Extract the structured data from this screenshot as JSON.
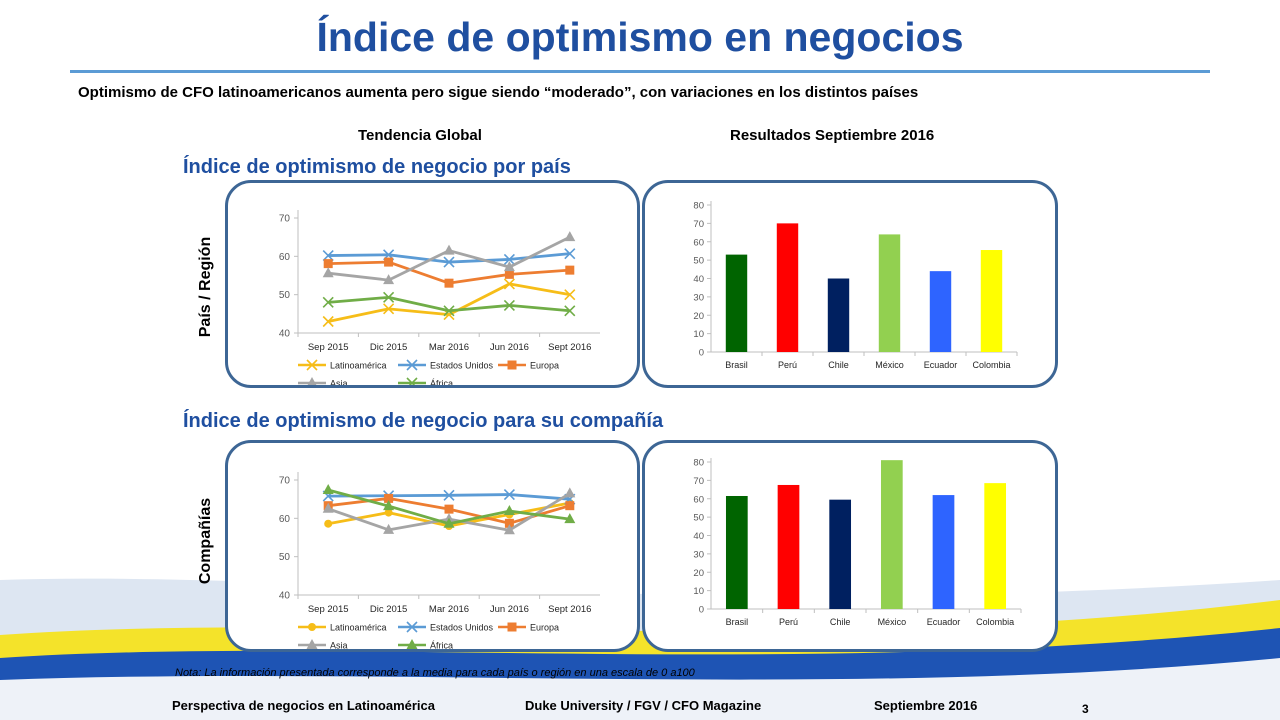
{
  "header": {
    "title": "Índice de optimismo en negocios",
    "subtitle": "Optimismo de CFO latinoamericanos aumenta pero sigue siendo “moderado”, con variaciones en los distintos países"
  },
  "columns": {
    "left": "Tendencia Global",
    "right": "Resultados Septiembre 2016"
  },
  "sections": {
    "country": "Índice de optimismo de negocio por país",
    "company": "Índice de optimismo de negocio para su compañía"
  },
  "row_labels": {
    "country": "País / Región",
    "company": "Compañías"
  },
  "colors": {
    "accent": "#1f4fa0",
    "panel_border": "#3d6695",
    "wave_blue": "#1e54b4",
    "wave_yellow": "#f4e32a"
  },
  "chart_data": [
    {
      "id": "country_trend",
      "type": "line",
      "categories": [
        "Sep 2015",
        "Dic 2015",
        "Mar 2016",
        "Jun 2016",
        "Sept 2016"
      ],
      "ylim": [
        40,
        70
      ],
      "yticks": [
        40,
        50,
        60,
        70
      ],
      "legend": "bottom",
      "series": [
        {
          "name": "Latinoamérica",
          "color": "#f6bd18",
          "marker": "x",
          "values": [
            43,
            46.3,
            44.8,
            52.8,
            50
          ]
        },
        {
          "name": "Estados Unidos",
          "color": "#5b9bd5",
          "marker": "x",
          "values": [
            60.2,
            60.4,
            58.5,
            59.2,
            60.7
          ]
        },
        {
          "name": "Europa",
          "color": "#ed7d31",
          "marker": "square",
          "values": [
            58.1,
            58.5,
            53,
            55.3,
            56.4
          ]
        },
        {
          "name": "Asia",
          "color": "#a5a5a5",
          "marker": "triangle",
          "values": [
            55.6,
            53.8,
            61.5,
            57.2,
            65
          ]
        },
        {
          "name": "África",
          "color": "#70ad47",
          "marker": "x",
          "values": [
            48,
            49.3,
            45.8,
            47.2,
            45.8
          ]
        }
      ]
    },
    {
      "id": "country_sept2016",
      "type": "bar",
      "categories": [
        "Brasil",
        "Perú",
        "Chile",
        "México",
        "Ecuador",
        "Colombia"
      ],
      "values": [
        53,
        70,
        40,
        64,
        44,
        55.5
      ],
      "colors": [
        "#006400",
        "#ff0000",
        "#002060",
        "#92d050",
        "#2e64ff",
        "#ffff00"
      ],
      "ylim": [
        0,
        80
      ],
      "yticks": [
        0,
        10,
        20,
        30,
        40,
        50,
        60,
        70,
        80
      ]
    },
    {
      "id": "company_trend",
      "type": "line",
      "categories": [
        "Sep 2015",
        "Dic 2015",
        "Mar 2016",
        "Jun 2016",
        "Sept 2016"
      ],
      "ylim": [
        40,
        70
      ],
      "yticks": [
        40,
        50,
        60,
        70
      ],
      "legend": "bottom",
      "series": [
        {
          "name": "Latinoamérica",
          "color": "#f6bd18",
          "marker": "circle",
          "values": [
            58.6,
            61.5,
            58,
            61,
            64
          ]
        },
        {
          "name": "Estados Unidos",
          "color": "#5b9bd5",
          "marker": "x",
          "values": [
            65.8,
            65.9,
            66,
            66.2,
            65
          ]
        },
        {
          "name": "Europa",
          "color": "#ed7d31",
          "marker": "square",
          "values": [
            63.3,
            65.2,
            62.4,
            58.7,
            63.3
          ]
        },
        {
          "name": "Asia",
          "color": "#a5a5a5",
          "marker": "triangle",
          "values": [
            62.5,
            57,
            59.8,
            56.9,
            66.5
          ]
        },
        {
          "name": "África",
          "color": "#70ad47",
          "marker": "triangle",
          "values": [
            67.4,
            63.2,
            58.6,
            61.9,
            59.8
          ]
        }
      ]
    },
    {
      "id": "company_sept2016",
      "type": "bar",
      "categories": [
        "Brasil",
        "Perú",
        "Chile",
        "México",
        "Ecuador",
        "Colombia"
      ],
      "values": [
        61.5,
        67.5,
        59.5,
        81,
        62,
        68.5
      ],
      "colors": [
        "#006400",
        "#ff0000",
        "#002060",
        "#92d050",
        "#2e64ff",
        "#ffff00"
      ],
      "ylim": [
        0,
        80
      ],
      "yticks": [
        0,
        10,
        20,
        30,
        40,
        50,
        60,
        70,
        80
      ]
    }
  ],
  "note": "Nota: La información presentada corresponde a la media para cada país o región en una escala de 0 a100",
  "footer": {
    "left": "Perspectiva de negocios en Latinoamérica",
    "center": "Duke University / FGV / CFO Magazine",
    "right": "Septiembre 2016",
    "page": "3"
  }
}
